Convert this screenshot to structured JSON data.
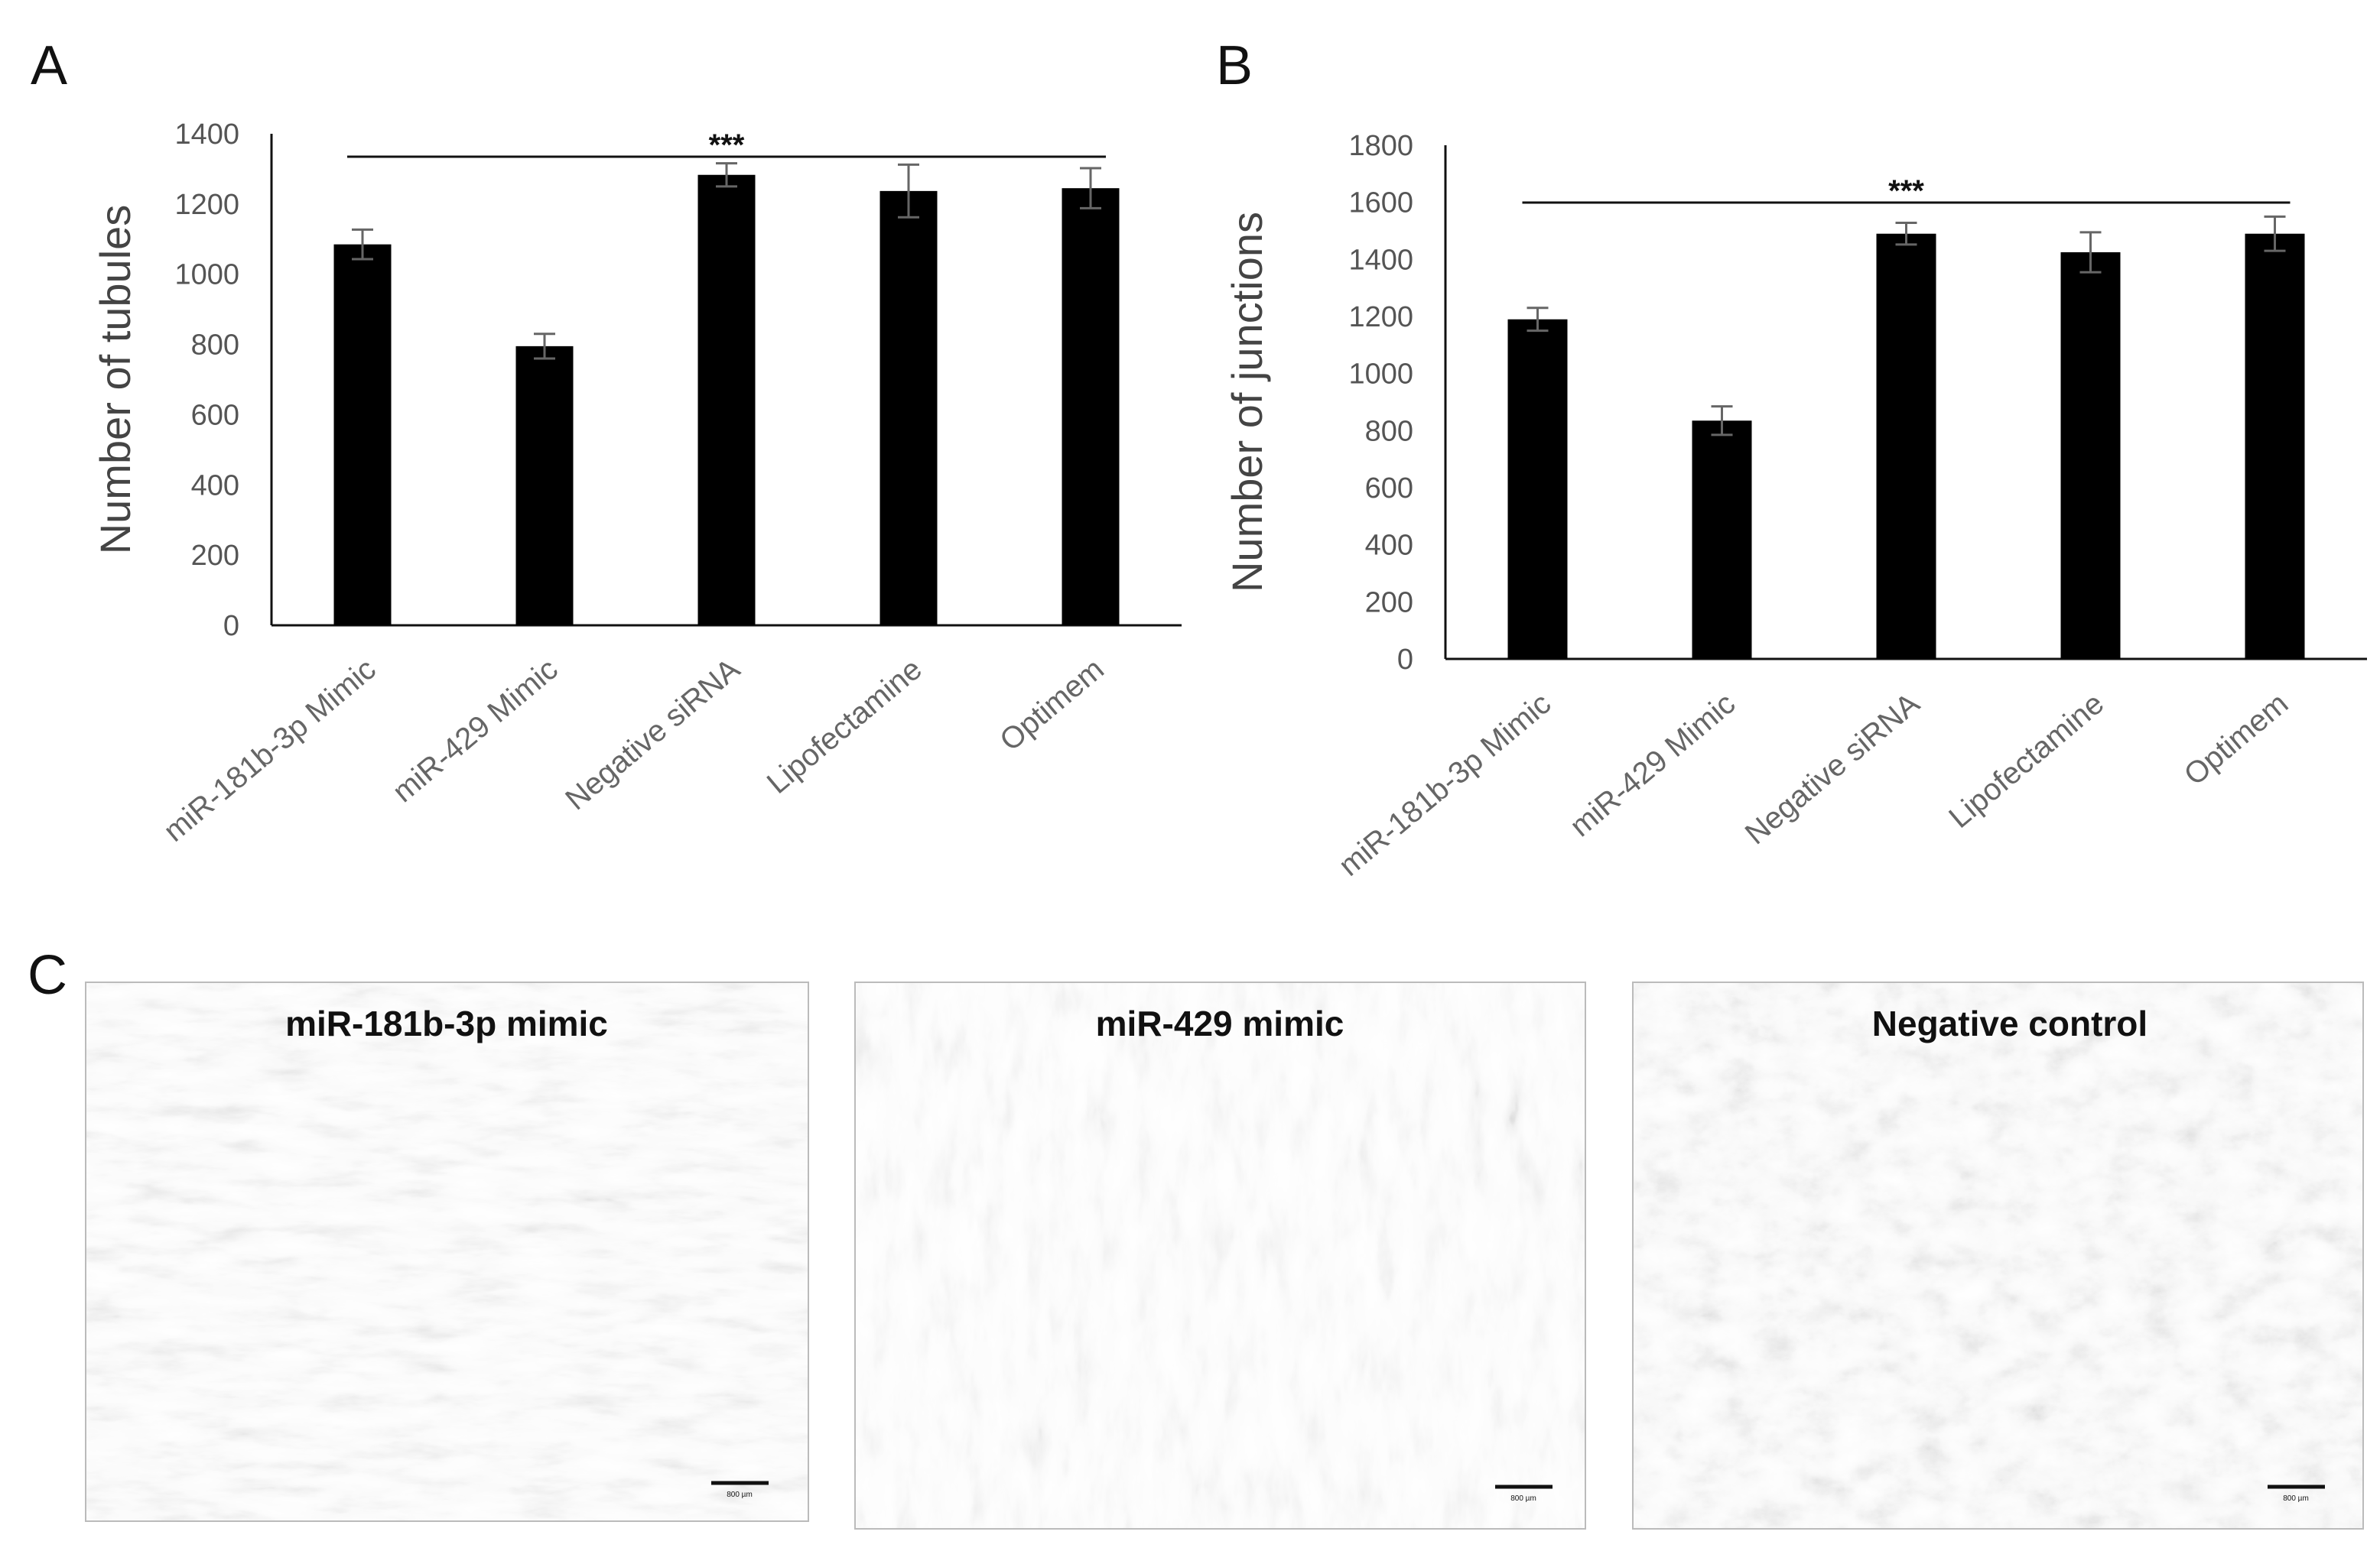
{
  "panels": {
    "a": "A",
    "b": "B",
    "c": "C"
  },
  "chart_data": [
    {
      "type": "bar",
      "panel": "A",
      "categories": [
        "miR-181b-3p Mimic",
        "miR-429 Mimic",
        "Negative siRNA",
        "Lipofectamine",
        "Optimem"
      ],
      "values": [
        1085,
        795,
        1283,
        1237,
        1245
      ],
      "errors": [
        42,
        35,
        33,
        75,
        57
      ],
      "ylabel": "Number of tubules",
      "xlabel": "",
      "ylim": [
        0,
        1400
      ],
      "yticks": [
        0,
        200,
        400,
        600,
        800,
        1000,
        1200,
        1400
      ],
      "significance": "***",
      "color": "#000000",
      "grid": false
    },
    {
      "type": "bar",
      "panel": "B",
      "categories": [
        "miR-181b-3p Mimic",
        "miR-429 Mimic",
        "Negative siRNA",
        "Lipofectamine",
        "Optimem"
      ],
      "values": [
        1190,
        835,
        1490,
        1425,
        1490
      ],
      "errors": [
        40,
        50,
        38,
        70,
        60
      ],
      "ylabel": "Number of junctions",
      "xlabel": "",
      "ylim": [
        0,
        1800
      ],
      "yticks": [
        0,
        200,
        400,
        600,
        800,
        1000,
        1200,
        1400,
        1600,
        1800
      ],
      "significance": "***",
      "color": "#000000",
      "grid": false
    }
  ],
  "micrographs": [
    {
      "title": "miR-181b-3p mimic",
      "scale_bar": "800 µm"
    },
    {
      "title": "miR-429 mimic",
      "scale_bar": "800 µm"
    },
    {
      "title": "Negative control",
      "scale_bar": "800 µm"
    }
  ]
}
